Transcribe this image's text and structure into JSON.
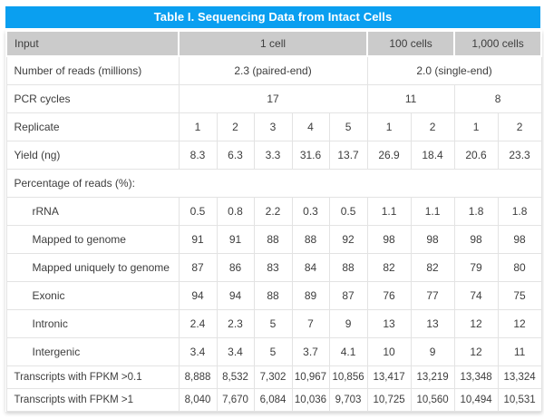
{
  "title": "Table I. Sequencing Data from Intact Cells",
  "colors": {
    "blue": "#0a9ff0",
    "gray": "#cbcbcb",
    "border": "#e3e3e3",
    "text": "#3d3d3d",
    "title_text": "#ffffff"
  },
  "table": {
    "column_groups": [
      "1 cell",
      "100 cells",
      "1,000 cells"
    ],
    "rows": [
      {
        "name": "input",
        "bg": "gray",
        "cells": [
          {
            "t": "Input",
            "l": 1
          },
          {
            "t": "1 cell",
            "span": 5
          },
          {
            "t": "100 cells",
            "span": 2
          },
          {
            "t": "1,000 cells",
            "span": 2
          }
        ]
      },
      {
        "name": "number-of-reads",
        "cells": [
          {
            "t": "Number of reads (millions)",
            "l": 1
          },
          {
            "t": "2.3 (paired-end)",
            "span": 5
          },
          {
            "t": "2.0 (single-end)",
            "span": 4
          }
        ]
      },
      {
        "name": "pcr-cycles",
        "cells": [
          {
            "t": "PCR cycles",
            "l": 1
          },
          {
            "t": "17",
            "span": 5
          },
          {
            "t": "11",
            "span": 2
          },
          {
            "t": "8",
            "span": 2
          }
        ]
      },
      {
        "name": "replicate",
        "cells": [
          {
            "t": "Replicate",
            "l": 1
          },
          "1",
          "2",
          "3",
          "4",
          "5",
          "1",
          "2",
          "1",
          "2"
        ]
      },
      {
        "name": "yield-ng",
        "cells": [
          {
            "t": "Yield (ng)",
            "l": 1
          },
          "8.3",
          "6.3",
          "3.3",
          "31.6",
          "13.7",
          "26.9",
          "18.4",
          "20.6",
          "23.3"
        ]
      },
      {
        "name": "percentage-of-reads-header",
        "cells": [
          {
            "t": "Percentage of reads (%):",
            "l": 1,
            "span": 10
          }
        ]
      },
      {
        "name": "rrna",
        "indent": 1,
        "cells": [
          {
            "t": "rRNA",
            "l": 1
          },
          "0.5",
          "0.8",
          "2.2",
          "0.3",
          "0.5",
          "1.1",
          "1.1",
          "1.8",
          "1.8"
        ]
      },
      {
        "name": "mapped-to-genome",
        "indent": 1,
        "cells": [
          {
            "t": "Mapped to genome",
            "l": 1
          },
          "91",
          "91",
          "88",
          "88",
          "92",
          "98",
          "98",
          "98",
          "98"
        ]
      },
      {
        "name": "mapped-uniquely-to-genome",
        "indent": 1,
        "cells": [
          {
            "t": "Mapped uniquely to genome",
            "l": 1
          },
          "87",
          "86",
          "83",
          "84",
          "88",
          "82",
          "82",
          "79",
          "80"
        ]
      },
      {
        "name": "exonic",
        "indent": 1,
        "cells": [
          {
            "t": "Exonic",
            "l": 1
          },
          "94",
          "94",
          "88",
          "89",
          "87",
          "76",
          "77",
          "74",
          "75"
        ]
      },
      {
        "name": "intronic",
        "indent": 1,
        "cells": [
          {
            "t": "Intronic",
            "l": 1
          },
          "2.4",
          "2.3",
          "5",
          "7",
          "9",
          "13",
          "13",
          "12",
          "12"
        ]
      },
      {
        "name": "intergenic",
        "indent": 1,
        "cells": [
          {
            "t": "Intergenic",
            "l": 1
          },
          "3.4",
          "3.4",
          "5",
          "3.7",
          "4.1",
          "10",
          "9",
          "12",
          "11"
        ]
      },
      {
        "name": "transcripts-fpkm-gt-0.1",
        "short": 1,
        "cells": [
          {
            "t": "Transcripts with FPKM >0.1",
            "l": 1
          },
          "8,888",
          "8,532",
          "7,302",
          "10,967",
          "10,856",
          "13,417",
          "13,219",
          "13,348",
          "13,324"
        ]
      },
      {
        "name": "transcripts-fpkm-gt-1",
        "short": 1,
        "cells": [
          {
            "t": "Transcripts with FPKM >1",
            "l": 1
          },
          "8,040",
          "7,670",
          "6,084",
          "10,036",
          "9,703",
          "10,725",
          "10,560",
          "10,494",
          "10,531"
        ]
      }
    ]
  }
}
